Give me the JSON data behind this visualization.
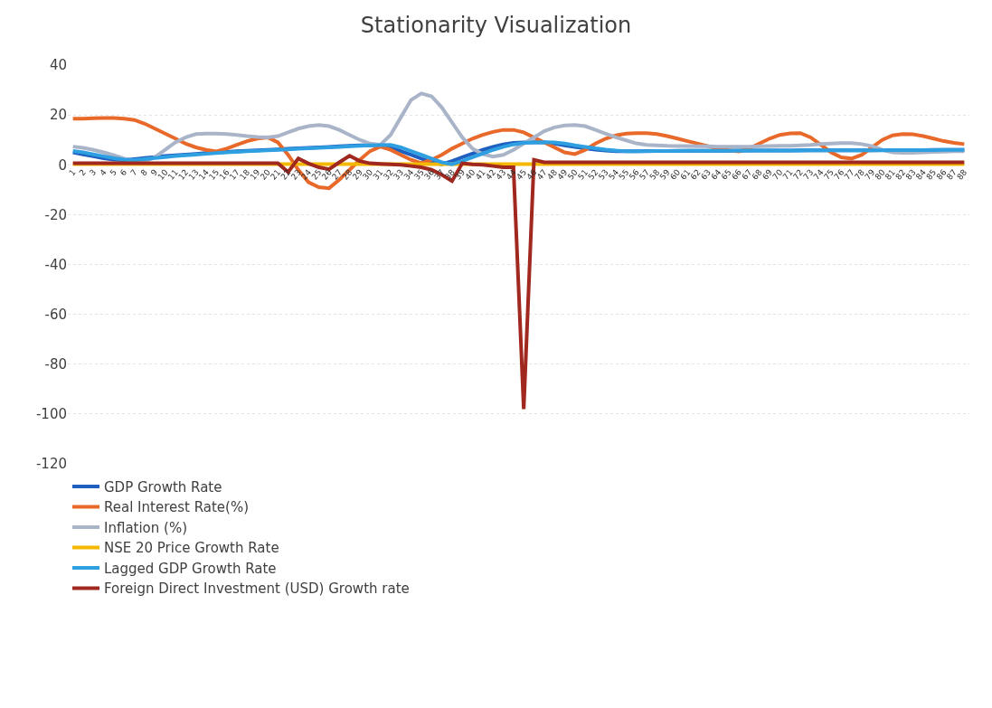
{
  "chart_data": {
    "type": "line",
    "title": "Stationarity Visualization",
    "categories": [
      "1",
      "2",
      "3",
      "4",
      "5",
      "6",
      "7",
      "8",
      "9",
      "10",
      "11",
      "12",
      "13",
      "14",
      "15",
      "16",
      "17",
      "18",
      "19",
      "20",
      "21",
      "22",
      "23",
      "24",
      "25",
      "26",
      "27",
      "28",
      "29",
      "30",
      "31",
      "32",
      "33",
      "34",
      "35",
      "36",
      "37",
      "38",
      "39",
      "40",
      "41",
      "42",
      "43",
      "44",
      "45",
      "46",
      "47",
      "48",
      "49",
      "50",
      "51",
      "52",
      "53",
      "54",
      "55",
      "56",
      "57",
      "58",
      "59",
      "60",
      "61",
      "62",
      "63",
      "64",
      "65",
      "66",
      "67",
      "68",
      "69",
      "70",
      "71",
      "72",
      "73",
      "74",
      "75",
      "76",
      "77",
      "78",
      "79",
      "80",
      "81",
      "82",
      "83",
      "84",
      "85",
      "86",
      "87",
      "88"
    ],
    "series": [
      {
        "name": "GDP Growth Rate",
        "color": "#1f5fbf",
        "values": [
          5,
          4.2,
          3.4,
          2.6,
          2.1,
          1.9,
          2.3,
          2.7,
          3.1,
          3.5,
          3.8,
          4.1,
          4.4,
          4.7,
          5,
          5.2,
          5.4,
          5.6,
          5.8,
          6,
          6.2,
          6.4,
          6.6,
          6.8,
          7,
          7.2,
          7.4,
          7.6,
          7.8,
          7.9,
          8,
          7,
          5.5,
          4,
          2.5,
          1,
          0.2,
          1.5,
          3,
          4.5,
          6,
          7.2,
          8.2,
          8.8,
          9,
          9.1,
          9,
          8.5,
          7.8,
          7.2,
          6.6,
          6.1,
          5.7,
          5.4,
          5.4,
          5.4,
          5.5,
          5.5,
          5.5,
          5.6,
          5.6,
          5.6,
          5.6,
          5.6,
          5.6,
          5.7,
          5.7,
          5.7,
          5.7,
          5.7,
          5.7,
          5.8,
          5.8,
          5.8,
          5.8,
          5.8,
          5.8,
          5.8,
          5.8,
          5.9,
          5.9,
          5.9,
          5.9,
          5.9,
          6,
          6,
          6,
          6
        ]
      },
      {
        "name": "Real Interest Rate(%)",
        "color": "#e8692a",
        "values": [
          18.5,
          18.5,
          18.7,
          18.8,
          18.8,
          18.5,
          18,
          16.5,
          14.5,
          12.5,
          10.5,
          8.5,
          7,
          6,
          5.4,
          6.5,
          8,
          9.5,
          10.5,
          11,
          9,
          4,
          -2,
          -7,
          -9,
          -9.4,
          -6,
          -2,
          2,
          5.5,
          7.3,
          6,
          4,
          2,
          0.7,
          2,
          4,
          6.5,
          8.5,
          10.5,
          12,
          13.2,
          14,
          14,
          13,
          11,
          9,
          7,
          5,
          4.3,
          6,
          8.5,
          10.5,
          11.8,
          12.5,
          12.7,
          12.7,
          12.3,
          11.5,
          10.5,
          9.5,
          8.5,
          7.5,
          6.5,
          5.8,
          5.4,
          6.5,
          8.5,
          10.5,
          12,
          12.6,
          12.7,
          11,
          8,
          5,
          3,
          2.5,
          4,
          7,
          10,
          11.8,
          12.3,
          12.2,
          11.5,
          10.5,
          9.5,
          8.8,
          8.3
        ]
      },
      {
        "name": "Inflation (%)",
        "color": "#a9b4c8",
        "values": [
          7.3,
          6.8,
          6,
          5,
          3.8,
          2.5,
          1.8,
          1.4,
          3,
          6,
          9,
          11,
          12.3,
          12.5,
          12.5,
          12.3,
          12,
          11.5,
          11.2,
          11,
          11.5,
          13,
          14.5,
          15.5,
          16,
          15.5,
          14,
          12,
          10,
          8.5,
          8,
          12,
          19,
          26,
          28.6,
          27.5,
          23,
          17,
          11,
          6.5,
          4.3,
          3.3,
          4,
          6,
          8.5,
          11,
          13.5,
          15,
          15.8,
          16,
          15.5,
          14,
          12.5,
          11,
          9.8,
          8.6,
          8,
          7.8,
          7.6,
          7.5,
          7.5,
          7.4,
          7.4,
          7.3,
          7.3,
          7.3,
          7.3,
          7.4,
          7.5,
          7.6,
          7.6,
          7.8,
          8,
          8.3,
          8.5,
          8.7,
          8.7,
          8.3,
          7.5,
          6,
          5,
          4.8,
          4.8,
          5,
          5.2,
          5.3,
          5.4,
          5.4
        ]
      },
      {
        "name": "NSE 20 Price Growth Rate",
        "color": "#f5b800",
        "values": [
          0.3,
          0.3,
          0.3,
          0.3,
          0.3,
          0.3,
          0.3,
          0.3,
          0.3,
          0.3,
          0.3,
          0.3,
          0.3,
          0.3,
          0.3,
          0.3,
          0.3,
          0.3,
          0.3,
          0.3,
          0.3,
          0.3,
          0.3,
          0.3,
          0.3,
          0.3,
          0.3,
          0.3,
          0.3,
          0.3,
          0.3,
          0.3,
          0.3,
          0.3,
          0.3,
          0.3,
          0.3,
          0.3,
          0.3,
          0.3,
          0.3,
          0.3,
          0.3,
          0.3,
          0.3,
          0.3,
          0.3,
          0.3,
          0.3,
          0.3,
          0.3,
          0.3,
          0.3,
          0.3,
          0.3,
          0.3,
          0.3,
          0.3,
          0.3,
          0.3,
          0.3,
          0.3,
          0.3,
          0.3,
          0.3,
          0.3,
          0.3,
          0.3,
          0.3,
          0.3,
          0.3,
          0.3,
          0.3,
          0.3,
          0.3,
          0.3,
          0.3,
          0.3,
          0.3,
          0.3,
          0.3,
          0.3,
          0.3,
          0.3,
          0.3,
          0.3,
          0.3,
          0.3
        ]
      },
      {
        "name": "Lagged GDP Growth Rate",
        "color": "#2e9fe0",
        "values": [
          5.5,
          5,
          4.2,
          3.4,
          2.6,
          2.1,
          1.9,
          2.3,
          2.7,
          3.1,
          3.5,
          3.8,
          4.1,
          4.4,
          4.7,
          5,
          5.2,
          5.4,
          5.6,
          5.8,
          6,
          6.2,
          6.4,
          6.6,
          6.8,
          7,
          7.2,
          7.4,
          7.6,
          7.8,
          7.9,
          8,
          7,
          5.5,
          4,
          2.5,
          1,
          0.2,
          1.5,
          3,
          4.5,
          6,
          7.2,
          8.2,
          8.8,
          9,
          9.1,
          9,
          8.5,
          7.8,
          7.2,
          6.6,
          6.1,
          5.7,
          5.4,
          5.4,
          5.4,
          5.5,
          5.5,
          5.5,
          5.6,
          5.6,
          5.6,
          5.6,
          5.6,
          5.6,
          5.7,
          5.7,
          5.7,
          5.7,
          5.7,
          5.7,
          5.8,
          5.8,
          5.8,
          5.8,
          5.8,
          5.8,
          5.8,
          5.8,
          5.9,
          5.9,
          5.9,
          5.9,
          5.9,
          6,
          6,
          6
        ]
      },
      {
        "name": "Foreign Direct Investment (USD) Growth rate",
        "color": "#a0281e",
        "values": [
          0.6,
          0.6,
          0.6,
          0.6,
          0.6,
          0.6,
          0.6,
          0.6,
          0.6,
          0.6,
          0.6,
          0.6,
          0.6,
          0.6,
          0.6,
          0.6,
          0.6,
          0.6,
          0.6,
          0.6,
          0.6,
          -2.9,
          2.5,
          0.5,
          -1,
          -1.8,
          1,
          3.6,
          1.5,
          0.6,
          0.4,
          0.2,
          0,
          -0.5,
          -1,
          -2,
          -4,
          -6.5,
          0.6,
          0.2,
          0,
          -0.5,
          -1,
          -1,
          -98,
          2,
          1,
          1,
          1,
          1,
          1,
          1,
          1,
          1,
          1,
          1,
          1,
          1,
          1,
          1,
          1,
          1,
          1,
          1,
          1,
          1,
          1,
          1,
          1,
          1,
          1,
          1,
          1,
          1,
          1,
          1,
          1,
          1,
          1,
          1,
          1,
          1,
          1,
          1,
          1,
          1,
          1,
          1
        ]
      }
    ],
    "ylim": [
      -120,
      40
    ],
    "yticks": [
      -120,
      -100,
      -80,
      -60,
      -40,
      -20,
      0,
      20,
      40
    ],
    "grid": "y",
    "legend": "bottom left",
    "marker": "none",
    "line_style": "solid"
  }
}
